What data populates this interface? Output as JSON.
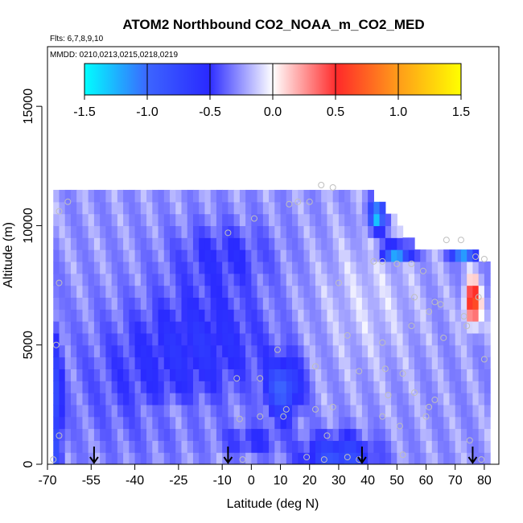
{
  "chart_data": {
    "type": "heatmap",
    "title": "ATOM2 Northbound CO2_NOAA_m_CO2_MED",
    "flights_note": "Flts: 6,7,8,9,10",
    "dates_note": "MMDD: 0210,0213,0215,0218,0219",
    "xlabel": "Latitude (deg N)",
    "ylabel": "Altitude (m)",
    "xlim": [
      -70,
      85
    ],
    "ylim": [
      0,
      17500
    ],
    "xticks": [
      -70,
      -55,
      -40,
      -25,
      -10,
      0,
      10,
      20,
      30,
      40,
      50,
      60,
      70,
      80
    ],
    "xtick_labels": [
      "-70",
      "-55",
      "-40",
      "-25",
      "-10",
      "0",
      "10",
      "20",
      "30",
      "40",
      "50",
      "60",
      "70",
      "80"
    ],
    "yticks": [
      0,
      5000,
      10000,
      15000
    ],
    "ytick_labels": [
      "0",
      "5000",
      "10000",
      "15000"
    ],
    "colorbar": {
      "range": [
        -1.5,
        1.5
      ],
      "ticks": [
        -1.5,
        -1.0,
        -0.5,
        0.0,
        0.5,
        1.0,
        1.5
      ],
      "tick_labels": [
        "-1.5",
        "-1.0",
        "-0.5",
        "0.0",
        "0.5",
        "1.0",
        "1.5"
      ],
      "colors": [
        "#00ffff",
        "#3c64ff",
        "#2a2aff",
        "#ffffff",
        "#ff2a2a",
        "#ff9a1a",
        "#ffff00"
      ]
    },
    "arrows_lat": [
      -54,
      -8,
      38,
      76
    ],
    "points": [
      [
        -68,
        200
      ],
      [
        -66,
        1200
      ],
      [
        -67,
        5000
      ],
      [
        -66,
        7600
      ],
      [
        -66,
        10600
      ],
      [
        -63,
        11000
      ],
      [
        -8,
        9700
      ],
      [
        -5,
        3600
      ],
      [
        -4,
        1900
      ],
      [
        -3,
        200
      ],
      [
        1,
        10300
      ],
      [
        3,
        3600
      ],
      [
        3,
        2000
      ],
      [
        9,
        4800
      ],
      [
        11,
        2000
      ],
      [
        12,
        2300
      ],
      [
        13,
        10900
      ],
      [
        16,
        11000
      ],
      [
        20,
        11000
      ],
      [
        22,
        4100
      ],
      [
        22,
        2300
      ],
      [
        19,
        300
      ],
      [
        24,
        11700
      ],
      [
        28,
        11600
      ],
      [
        25,
        200
      ],
      [
        26,
        1200
      ],
      [
        28,
        2400
      ],
      [
        30,
        7600
      ],
      [
        33,
        5400
      ],
      [
        33,
        300
      ],
      [
        37,
        3900
      ],
      [
        37,
        200
      ],
      [
        42,
        8500
      ],
      [
        45,
        8500
      ],
      [
        45,
        5100
      ],
      [
        45,
        2000
      ],
      [
        46,
        4000
      ],
      [
        47,
        2900
      ],
      [
        50,
        8400
      ],
      [
        51,
        1600
      ],
      [
        52,
        3800
      ],
      [
        52,
        400
      ],
      [
        55,
        8400
      ],
      [
        55,
        5800
      ],
      [
        56,
        7000
      ],
      [
        56,
        3000
      ],
      [
        59,
        8100
      ],
      [
        60,
        2000
      ],
      [
        61,
        2400
      ],
      [
        61,
        6400
      ],
      [
        63,
        2700
      ],
      [
        63,
        6800
      ],
      [
        65,
        6700
      ],
      [
        66,
        5300
      ],
      [
        67,
        9400
      ],
      [
        72,
        9400
      ],
      [
        73,
        6200
      ],
      [
        74,
        5800
      ],
      [
        75,
        1000
      ],
      [
        77,
        8700
      ],
      [
        78,
        7000
      ],
      [
        79,
        200
      ],
      [
        80,
        4400
      ],
      [
        80,
        8600
      ]
    ]
  }
}
